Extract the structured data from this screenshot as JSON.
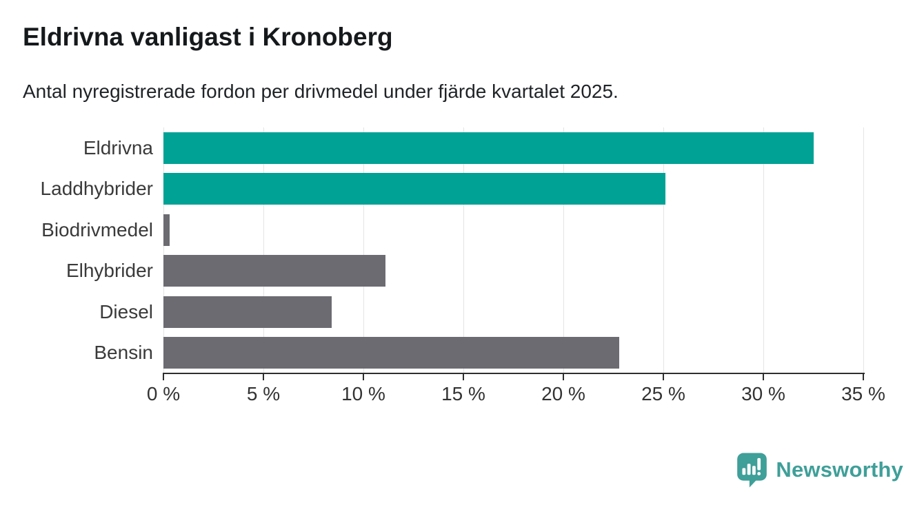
{
  "header": {
    "title": "Eldrivna vanligast i Kronoberg",
    "subtitle": "Antal nyregistrerade fordon per drivmedel under fjärde kvartalet 2025."
  },
  "chart_data": {
    "type": "bar",
    "orientation": "horizontal",
    "title": "Eldrivna vanligast i Kronoberg",
    "subtitle": "Antal nyregistrerade fordon per drivmedel under fjärde kvartalet 2025.",
    "categories": [
      "Eldrivna",
      "Laddhybrider",
      "Biodrivmedel",
      "Elhybrider",
      "Diesel",
      "Bensin"
    ],
    "values": [
      32.5,
      25.1,
      0.3,
      11.1,
      8.4,
      22.8
    ],
    "unit": "%",
    "bar_colors": [
      "#00a296",
      "#00a296",
      "#6b6b71",
      "#6b6b71",
      "#6b6b71",
      "#6b6b71"
    ],
    "highlight_color": "#00a296",
    "default_color": "#6b6b71",
    "xlim": [
      0,
      35
    ],
    "x_tick_values": [
      0,
      5,
      10,
      15,
      20,
      25,
      30,
      35
    ],
    "x_tick_labels": [
      "0 %",
      "5 %",
      "10 %",
      "15 %",
      "20 %",
      "25 %",
      "30 %",
      "35 %"
    ],
    "grid": "vertical-only",
    "gridline_color": "#e4e4e4",
    "axis_color": "#2e2e2e",
    "legend": "none",
    "value_labels": "none"
  },
  "footer": {
    "brand": "Newsworthy",
    "brand_color": "#3f9f99",
    "logo_icon": "speech-bubble-bar-chart-exclamation"
  }
}
